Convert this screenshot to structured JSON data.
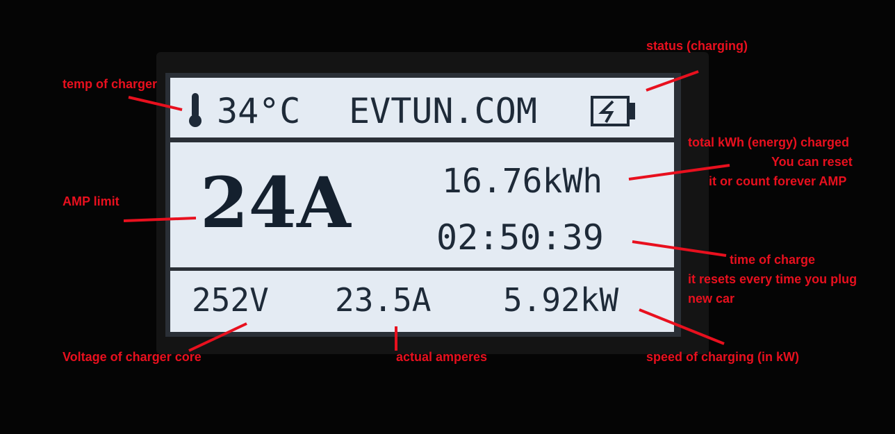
{
  "display": {
    "temperature": "34°C",
    "brand": "EVTUN.COM",
    "amp_limit": "24A",
    "energy": "16.76kWh",
    "time": "02:50:39",
    "voltage": "252V",
    "current": "23.5A",
    "power": "5.92kW"
  },
  "annotations": {
    "status": "status (charging)",
    "temperature": "temp of charger",
    "energy": [
      "total kWh (energy) charged",
      "You can reset",
      "it or count forever AMP"
    ],
    "amp_limit": "AMP limit",
    "time": [
      "time of charge",
      "it resets every time you plug",
      "new car"
    ],
    "voltage": "Voltage of charger core",
    "current": "actual amperes",
    "power": "speed of charging (in kW)"
  }
}
